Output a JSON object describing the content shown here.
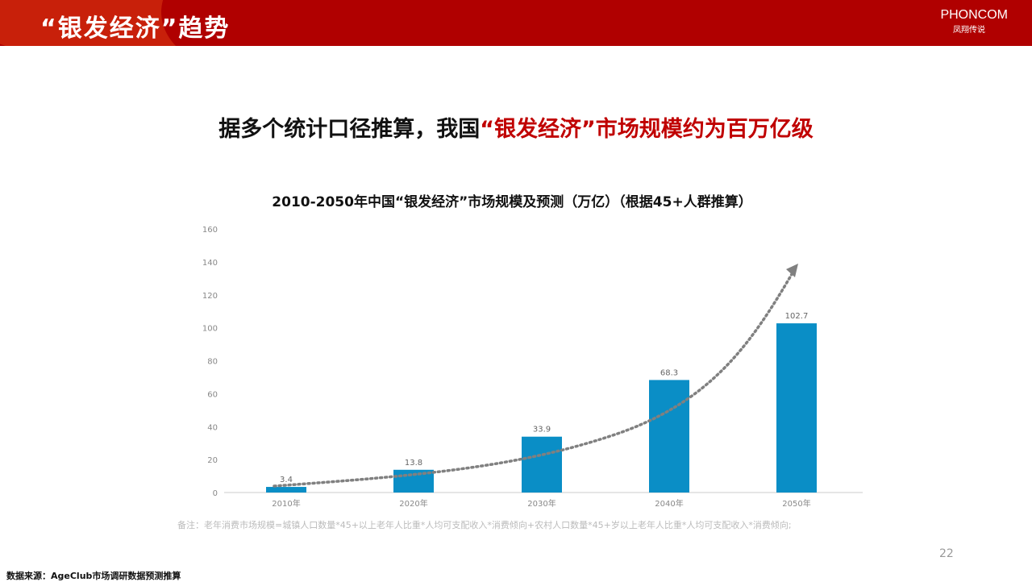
{
  "header": {
    "title": "“银发经济”趋势",
    "logo_name": "PHONCOM",
    "logo_sub": "凤翔传说"
  },
  "headline": {
    "prefix": "据多个统计口径推算，我国",
    "highlight": "“银发经济”市场规模约为百万亿级"
  },
  "colors": {
    "header": "#b00000",
    "highlight": "#c00000",
    "bar": "#0a8ec6",
    "trend": "#808080"
  },
  "chart_data": {
    "type": "bar",
    "title": "2010-2050年中国“银发经济”市场规模及预测（万亿）（根据45+人群推算）",
    "categories": [
      "2010年",
      "2020年",
      "2030年",
      "2040年",
      "2050年"
    ],
    "values": [
      3.4,
      13.8,
      33.9,
      68.3,
      102.7
    ],
    "data_labels": [
      "3.4",
      "13.8",
      "33.9",
      "68.3",
      "102.7"
    ],
    "ylim": [
      0,
      160
    ],
    "yticks": [
      "0",
      "20",
      "40",
      "60",
      "80",
      "100",
      "120",
      "140",
      "160"
    ],
    "trend": "dotted exponential arrow",
    "grid": false
  },
  "note": "备注：老年消费市场规模=城镇人口数量*45+以上老年人比重*人均可支配收入*消费倾向+农村人口数量*45+岁以上老年人比重*人均可支配收入*消费倾向;",
  "page_number": "22",
  "source": "数据来源：AgeClub市场调研数据预测推算"
}
